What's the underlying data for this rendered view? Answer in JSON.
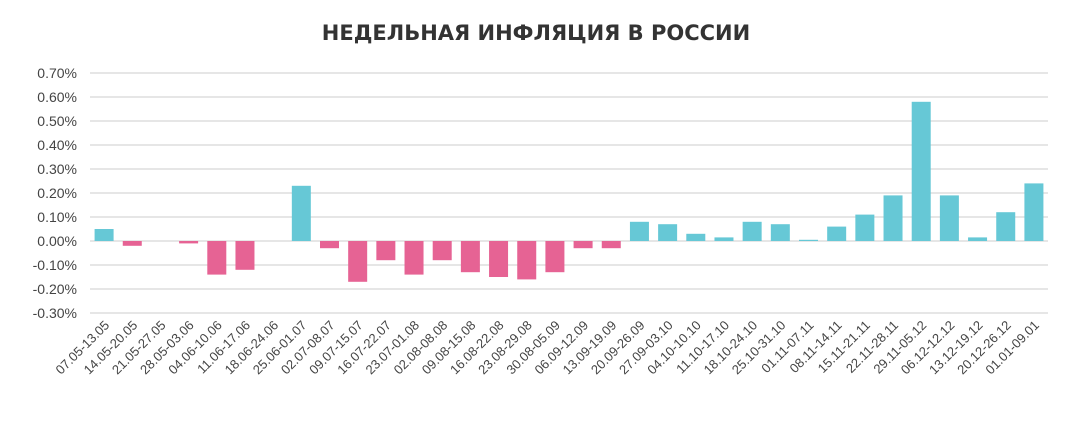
{
  "chart_data": {
    "type": "bar",
    "title": "НЕДЕЛЬНАЯ ИНФЛЯЦИЯ В РОССИИ",
    "xlabel": "",
    "ylabel": "",
    "ylim": [
      -0.3,
      0.7
    ],
    "yticks": [
      0.7,
      0.6,
      0.5,
      0.4,
      0.3,
      0.2,
      0.1,
      0.0,
      -0.1,
      -0.2,
      -0.3
    ],
    "ytick_labels": [
      "0.70%",
      "0.60%",
      "0.50%",
      "0.40%",
      "0.30%",
      "0.20%",
      "0.10%",
      "0.00%",
      "-0.10%",
      "-0.20%",
      "-0.30%"
    ],
    "grid": true,
    "colors": {
      "positive": "#66c8d6",
      "negative": "#e66394",
      "grid": "#dddddd"
    },
    "categories": [
      "07.05-13.05",
      "14.05-20.05",
      "21.05-27.05",
      "28.05-03.06",
      "04.06-10.06",
      "11.06-17.06",
      "18.06-24.06",
      "25.06-01.07",
      "02.07-08.07",
      "09.07-15.07",
      "16.07-22.07",
      "23.07-01.08",
      "02.08-08.08",
      "09.08-15.08",
      "16.08-22.08",
      "23.08-29.08",
      "30.08-05.09",
      "06.09-12.09",
      "13.09-19.09",
      "20.09-26.09",
      "27.09-03.10",
      "04.10-10.10",
      "11.10-17.10",
      "18.10-24.10",
      "25.10-31.10",
      "01.11-07.11",
      "08.11-14.11",
      "15.11-21.11",
      "22.11-28.11",
      "29.11-05.12",
      "06.12-12.12",
      "13.12-19.12",
      "20.12-26.12",
      "01.01-09.01"
    ],
    "values": [
      0.05,
      -0.02,
      0.0,
      -0.01,
      -0.14,
      -0.12,
      0.0,
      0.23,
      -0.03,
      -0.17,
      -0.08,
      -0.14,
      -0.08,
      -0.13,
      -0.15,
      -0.16,
      -0.13,
      -0.03,
      -0.03,
      0.08,
      0.07,
      0.03,
      0.015,
      0.08,
      0.07,
      0.005,
      0.06,
      0.11,
      0.19,
      0.58,
      0.19,
      0.015,
      0.12,
      0.24
    ]
  }
}
